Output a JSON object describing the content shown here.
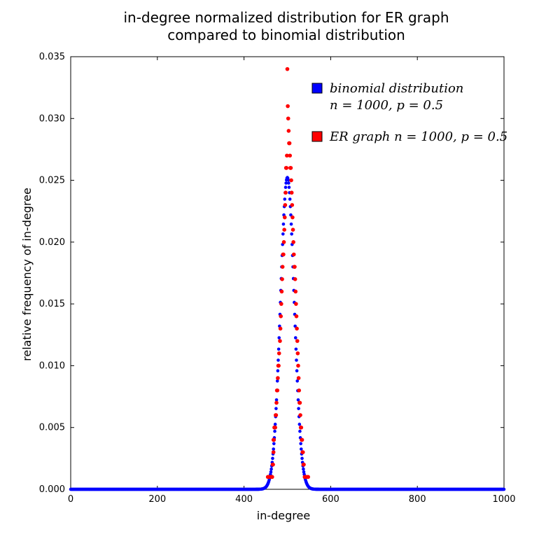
{
  "chart_data": {
    "type": "scatter",
    "title": [
      "in-degree normalized distribution for ER graph",
      "compared to binomial distribution"
    ],
    "xlabel": "in-degree",
    "ylabel": "relative frequency of in-degree",
    "xlim": [
      0,
      1000
    ],
    "ylim": [
      0,
      0.035
    ],
    "xticks": [
      "0",
      "200",
      "400",
      "600",
      "800",
      "1000"
    ],
    "yticks": [
      "0.000",
      "0.005",
      "0.010",
      "0.015",
      "0.020",
      "0.025",
      "0.030",
      "0.035"
    ],
    "grid": false,
    "legend_position": "upper-right",
    "series": [
      {
        "name": "binomial distribution n = 1000, p = 0.5",
        "legend_lines": [
          "binomial distribution",
          "n = 1000, p = 0.5"
        ],
        "color": "#0000ff",
        "model": {
          "kind": "binomial",
          "n": 1000,
          "p": 0.5,
          "x_range": [
            0,
            1000
          ]
        }
      },
      {
        "name": "ER graph n = 1000, p = 0.5",
        "legend_lines": [
          "ER graph n = 1000, p = 0.5"
        ],
        "color": "#ff0000",
        "points": [
          [
            455,
            0.001
          ],
          [
            457,
            0.001
          ],
          [
            460,
            0.001
          ],
          [
            462,
            0.001
          ],
          [
            465,
            0.001
          ],
          [
            466,
            0.002
          ],
          [
            467,
            0.002
          ],
          [
            468,
            0.003
          ],
          [
            468,
            0.004
          ],
          [
            469,
            0.004
          ],
          [
            470,
            0.005
          ],
          [
            472,
            0.005
          ],
          [
            473,
            0.006
          ],
          [
            474,
            0.006
          ],
          [
            475,
            0.007
          ],
          [
            476,
            0.008
          ],
          [
            477,
            0.008
          ],
          [
            478,
            0.009
          ],
          [
            479,
            0.01
          ],
          [
            480,
            0.01
          ],
          [
            481,
            0.011
          ],
          [
            483,
            0.012
          ],
          [
            484,
            0.013
          ],
          [
            485,
            0.014
          ],
          [
            486,
            0.015
          ],
          [
            487,
            0.016
          ],
          [
            488,
            0.017
          ],
          [
            489,
            0.018
          ],
          [
            490,
            0.019
          ],
          [
            491,
            0.019
          ],
          [
            492,
            0.02
          ],
          [
            493,
            0.021
          ],
          [
            494,
            0.022
          ],
          [
            495,
            0.023
          ],
          [
            496,
            0.024
          ],
          [
            497,
            0.026
          ],
          [
            498,
            0.026
          ],
          [
            499,
            0.027
          ],
          [
            500,
            0.034
          ],
          [
            501,
            0.031
          ],
          [
            502,
            0.03
          ],
          [
            503,
            0.029
          ],
          [
            504,
            0.028
          ],
          [
            505,
            0.028
          ],
          [
            506,
            0.027
          ],
          [
            507,
            0.026
          ],
          [
            508,
            0.026
          ],
          [
            509,
            0.025
          ],
          [
            510,
            0.024
          ],
          [
            511,
            0.023
          ],
          [
            512,
            0.022
          ],
          [
            513,
            0.021
          ],
          [
            514,
            0.02
          ],
          [
            515,
            0.019
          ],
          [
            516,
            0.018
          ],
          [
            517,
            0.018
          ],
          [
            518,
            0.017
          ],
          [
            519,
            0.016
          ],
          [
            520,
            0.015
          ],
          [
            521,
            0.014
          ],
          [
            522,
            0.013
          ],
          [
            523,
            0.012
          ],
          [
            524,
            0.011
          ],
          [
            525,
            0.01
          ],
          [
            526,
            0.009
          ],
          [
            527,
            0.008
          ],
          [
            528,
            0.007
          ],
          [
            529,
            0.007
          ],
          [
            530,
            0.006
          ],
          [
            531,
            0.005
          ],
          [
            532,
            0.005
          ],
          [
            533,
            0.004
          ],
          [
            534,
            0.004
          ],
          [
            535,
            0.003
          ],
          [
            536,
            0.003
          ],
          [
            537,
            0.002
          ],
          [
            538,
            0.002
          ],
          [
            540,
            0.001
          ],
          [
            542,
            0.001
          ],
          [
            545,
            0.001
          ],
          [
            548,
            0.001
          ]
        ]
      }
    ]
  }
}
